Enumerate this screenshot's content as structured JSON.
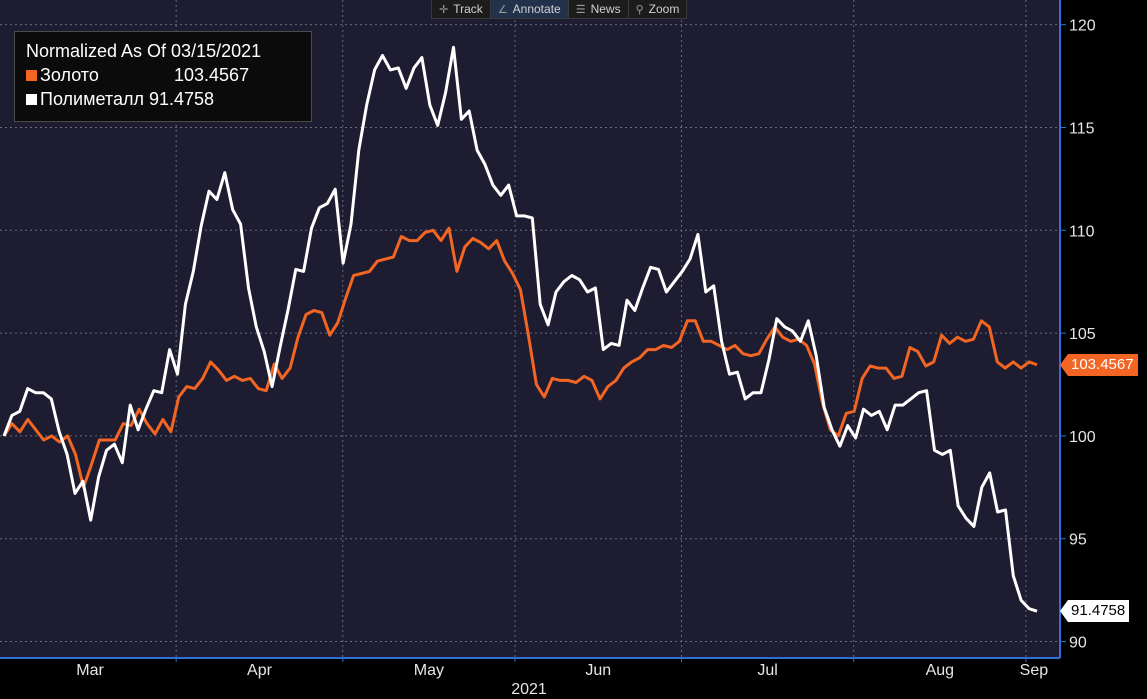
{
  "toolbar": {
    "items": [
      {
        "label": "Track",
        "icon": "crosshair-icon"
      },
      {
        "label": "Annotate",
        "icon": "pencil-icon"
      },
      {
        "label": "News",
        "icon": "news-icon"
      },
      {
        "label": "Zoom",
        "icon": "magnifier-icon"
      }
    ]
  },
  "chart_data": {
    "type": "line",
    "title": "Normalized As Of 03/15/2021",
    "x_labels": [
      "Mar",
      "Apr",
      "May",
      "Jun",
      "Jul",
      "Aug",
      "Sep"
    ],
    "year_label": "2021",
    "y_ticks": [
      90,
      95,
      100,
      105,
      110,
      115,
      120
    ],
    "ylim": [
      89.2,
      121.2
    ],
    "grid": true,
    "legend_position": "top-left",
    "x_start": "2021-03-01",
    "x_end": "2021-09-03",
    "series": [
      {
        "name": "Золото",
        "color": "#f26522",
        "last_label": "103.4567",
        "values": [
          100.0,
          100.6,
          100.2,
          100.8,
          100.3,
          99.8,
          100.0,
          99.7,
          100.0,
          99.1,
          97.5,
          98.6,
          99.8,
          99.8,
          99.8,
          100.6,
          100.5,
          101.3,
          100.6,
          100.1,
          100.8,
          100.2,
          101.9,
          102.4,
          102.3,
          102.8,
          103.6,
          103.2,
          102.7,
          102.9,
          102.7,
          102.8,
          102.3,
          102.2,
          103.5,
          102.8,
          103.3,
          104.8,
          105.9,
          106.1,
          106.0,
          104.9,
          105.5,
          106.7,
          107.8,
          107.9,
          108.0,
          108.5,
          108.6,
          108.7,
          109.7,
          109.5,
          109.5,
          109.9,
          110.0,
          109.5,
          110.1,
          108.0,
          109.2,
          109.6,
          109.4,
          109.1,
          109.5,
          108.5,
          107.9,
          107.1,
          104.9,
          102.5,
          101.9,
          102.8,
          102.7,
          102.7,
          102.6,
          102.9,
          102.7,
          101.8,
          102.4,
          102.7,
          103.3,
          103.6,
          103.8,
          104.2,
          104.2,
          104.4,
          104.3,
          104.6,
          105.6,
          105.6,
          104.6,
          104.6,
          104.4,
          104.2,
          104.4,
          104.0,
          103.9,
          104.0,
          104.7,
          105.3,
          104.8,
          104.6,
          104.7,
          104.4,
          103.5,
          101.6,
          100.3,
          100.0,
          101.1,
          101.2,
          102.8,
          103.4,
          103.3,
          103.3,
          102.8,
          102.9,
          104.3,
          104.1,
          103.4,
          103.6,
          104.9,
          104.5,
          104.8,
          104.6,
          104.7,
          105.6,
          105.3,
          103.6,
          103.3,
          103.6,
          103.3,
          103.6,
          103.4567
        ]
      },
      {
        "name": "Полиметалл",
        "color": "#ffffff",
        "last_label": "91.4758",
        "values": [
          100.0,
          101.0,
          101.2,
          102.3,
          102.1,
          102.1,
          101.8,
          100.2,
          99.1,
          97.2,
          97.8,
          95.9,
          98.0,
          99.3,
          99.6,
          98.7,
          101.5,
          100.3,
          101.3,
          102.2,
          102.1,
          104.2,
          103.0,
          106.4,
          108.0,
          110.2,
          111.9,
          111.5,
          112.8,
          111.0,
          110.3,
          107.2,
          105.3,
          104.1,
          102.4,
          104.3,
          106.1,
          108.1,
          108.0,
          110.1,
          111.1,
          111.3,
          112.0,
          108.4,
          110.3,
          113.9,
          116.1,
          117.8,
          118.5,
          117.8,
          117.9,
          116.9,
          117.9,
          118.4,
          116.1,
          115.1,
          116.7,
          118.9,
          115.4,
          115.8,
          113.9,
          113.2,
          112.2,
          111.7,
          112.2,
          110.7,
          110.7,
          110.6,
          106.4,
          105.4,
          107.0,
          107.5,
          107.8,
          107.6,
          107.0,
          107.2,
          104.2,
          104.5,
          104.4,
          106.6,
          106.1,
          107.2,
          108.2,
          108.1,
          107.0,
          107.5,
          108.0,
          108.6,
          109.8,
          107.0,
          107.3,
          104.6,
          103.0,
          103.1,
          101.8,
          102.1,
          102.1,
          103.7,
          105.7,
          105.3,
          105.1,
          104.6,
          105.6,
          103.9,
          101.4,
          100.3,
          99.5,
          100.5,
          99.9,
          101.3,
          101.0,
          101.2,
          100.3,
          101.5,
          101.5,
          101.8,
          102.1,
          102.2,
          99.3,
          99.1,
          99.3,
          96.6,
          96.0,
          95.6,
          97.5,
          98.2,
          96.3,
          96.4,
          93.2,
          92.0,
          91.6,
          91.4758
        ]
      }
    ]
  }
}
